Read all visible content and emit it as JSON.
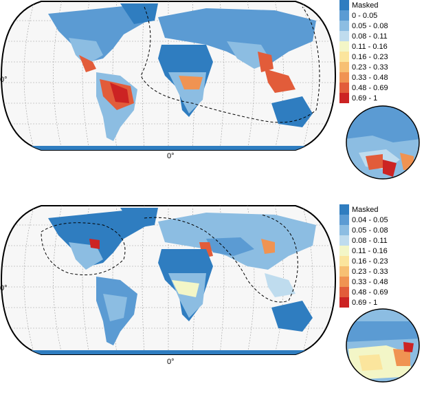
{
  "panels": [
    {
      "lat_label": "0°",
      "lon_label": "0°",
      "legend": [
        {
          "label": "Masked",
          "color": "#2f7dc0"
        },
        {
          "label": "0 - 0.05",
          "color": "#5b9bd3"
        },
        {
          "label": "0.05 - 0.08",
          "color": "#8cbde2"
        },
        {
          "label": "0.08 - 0.11",
          "color": "#bfdcee"
        },
        {
          "label": "0.11 - 0.16",
          "color": "#f3f6c7"
        },
        {
          "label": "0.16 - 0.23",
          "color": "#fbe59d"
        },
        {
          "label": "0.23 - 0.33",
          "color": "#f7c073"
        },
        {
          "label": "0.33 - 0.48",
          "color": "#f09352"
        },
        {
          "label": "0.48 - 0.69",
          "color": "#e25c3a"
        },
        {
          "label": "0.69 - 1",
          "color": "#cc2323"
        }
      ]
    },
    {
      "lat_label": "0°",
      "lon_label": "0°",
      "legend": [
        {
          "label": "Masked",
          "color": "#2f7dc0"
        },
        {
          "label": "0.04 - 0.05",
          "color": "#5b9bd3"
        },
        {
          "label": "0.05 - 0.08",
          "color": "#8cbde2"
        },
        {
          "label": "0.08 - 0.11",
          "color": "#bfdcee"
        },
        {
          "label": "0.11 - 0.16",
          "color": "#f3f6c7"
        },
        {
          "label": "0.16 - 0.23",
          "color": "#fbe59d"
        },
        {
          "label": "0.23 - 0.33",
          "color": "#f7c073"
        },
        {
          "label": "0.33 - 0.48",
          "color": "#f09352"
        },
        {
          "label": "0.48 - 0.69",
          "color": "#e25c3a"
        },
        {
          "label": "0.69 - 1",
          "color": "#cc2323"
        }
      ]
    }
  ]
}
